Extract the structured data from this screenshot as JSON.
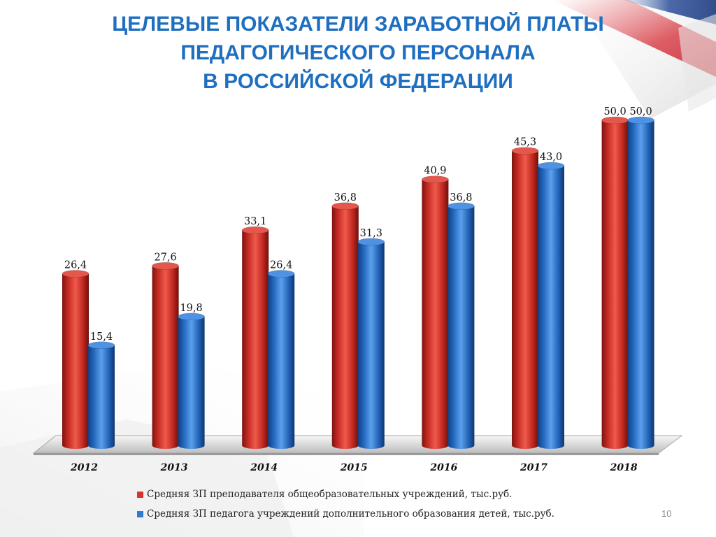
{
  "slide": {
    "title_lines": [
      "ЦЕЛЕВЫЕ ПОКАЗАТЕЛИ ЗАРАБОТНОЙ ПЛАТЫ",
      "ПЕДАГОГИЧЕСКОГО ПЕРСОНАЛА",
      "В РОССИЙСКОЙ ФЕДЕРАЦИИ"
    ],
    "page_number": "10",
    "colors": {
      "title": "#1f6fc0",
      "red_series": "#d8342b",
      "blue_series": "#2f7bd2",
      "ribbon_red": "#d9434b",
      "ribbon_blue": "#2d4f9a"
    }
  },
  "chart_data": {
    "type": "bar",
    "categories": [
      "2012",
      "2013",
      "2014",
      "2015",
      "2016",
      "2017",
      "2018"
    ],
    "series": [
      {
        "name": "Средняя ЗП преподавателя общеобразовательных учреждений, тыс.руб.",
        "values": [
          26.4,
          27.6,
          33.1,
          36.8,
          40.9,
          45.3,
          50.0
        ],
        "labels": [
          "26,4",
          "27,6",
          "33,1",
          "36,8",
          "40,9",
          "45,3",
          "50,0"
        ],
        "color": "#d8342b"
      },
      {
        "name": "Средняя ЗП педагога учреждений дополнительного образования детей, тыс.руб.",
        "values": [
          15.4,
          19.8,
          26.4,
          31.3,
          36.8,
          43.0,
          50.0
        ],
        "labels": [
          "15,4",
          "19,8",
          "26,4",
          "31,3",
          "36,8",
          "43,0",
          "50,0"
        ],
        "color": "#2f7bd2"
      }
    ],
    "ylim": [
      0,
      50
    ],
    "grid": false,
    "style": "3d-cylinder",
    "legend_position": "bottom"
  }
}
